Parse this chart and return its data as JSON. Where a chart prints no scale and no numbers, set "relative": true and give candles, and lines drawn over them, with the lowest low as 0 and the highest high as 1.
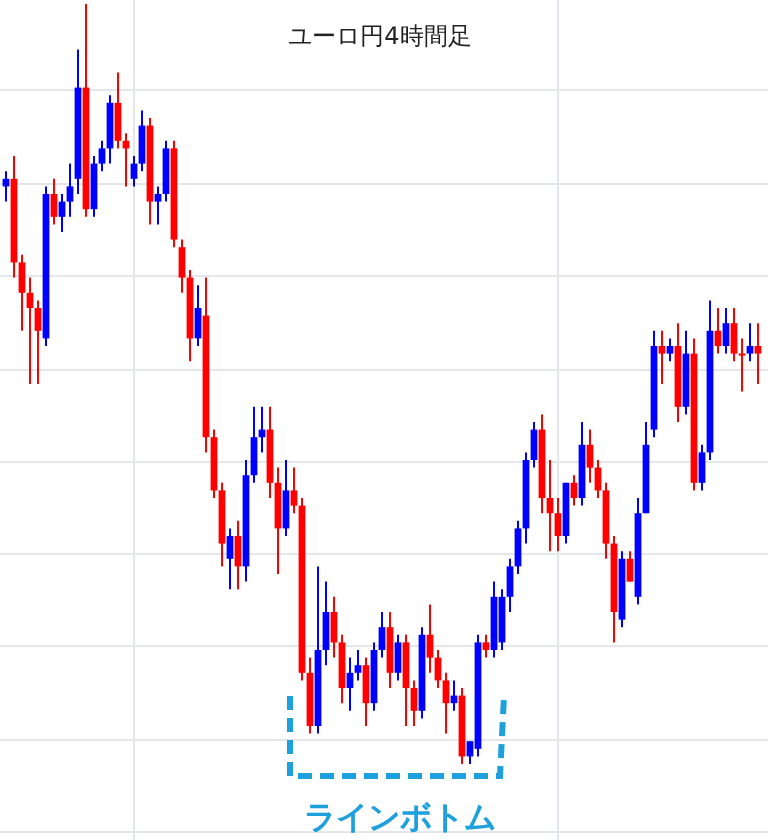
{
  "chart_data": {
    "type": "candlestick",
    "title": "ユーロ円4時間足",
    "relative": true,
    "grid": true,
    "annotations": [
      "ラインボトム"
    ],
    "categories": [
      null,
      null,
      null,
      null,
      null,
      null,
      null,
      null,
      null,
      null,
      null,
      null,
      null,
      null,
      null,
      null,
      null,
      null,
      null,
      null,
      null,
      null,
      null,
      null,
      null,
      null,
      null,
      null,
      null,
      null,
      null,
      null,
      null,
      null,
      null,
      null,
      null,
      null,
      null,
      null,
      null,
      null,
      null,
      null,
      null,
      null,
      null,
      null,
      null,
      null,
      null,
      null,
      null,
      null,
      null,
      null,
      null,
      null,
      null,
      null,
      null,
      null,
      null,
      null,
      null,
      null,
      null,
      null,
      null,
      null,
      null,
      null,
      null,
      null,
      null,
      null,
      null,
      null,
      null,
      null,
      null,
      null,
      null,
      null,
      null,
      null,
      null,
      null,
      null,
      null,
      null,
      null,
      null,
      null,
      null
    ],
    "ohlc": [
      [
        0.76,
        0.78,
        0.74,
        0.77
      ],
      [
        0.77,
        0.8,
        0.64,
        0.66
      ],
      [
        0.66,
        0.67,
        0.57,
        0.62
      ],
      [
        0.62,
        0.64,
        0.5,
        0.6
      ],
      [
        0.6,
        0.61,
        0.5,
        0.57
      ],
      [
        0.56,
        0.76,
        0.55,
        0.75
      ],
      [
        0.75,
        0.77,
        0.71,
        0.72
      ],
      [
        0.72,
        0.75,
        0.7,
        0.74
      ],
      [
        0.74,
        0.79,
        0.72,
        0.76
      ],
      [
        0.77,
        0.94,
        0.75,
        0.89
      ],
      [
        0.89,
        1.0,
        0.72,
        0.73
      ],
      [
        0.73,
        0.8,
        0.72,
        0.79
      ],
      [
        0.79,
        0.82,
        0.78,
        0.81
      ],
      [
        0.81,
        0.88,
        0.79,
        0.87
      ],
      [
        0.87,
        0.91,
        0.81,
        0.82
      ],
      [
        0.82,
        0.83,
        0.76,
        0.81
      ],
      [
        0.77,
        0.8,
        0.76,
        0.79
      ],
      [
        0.79,
        0.86,
        0.78,
        0.84
      ],
      [
        0.84,
        0.85,
        0.71,
        0.74
      ],
      [
        0.74,
        0.76,
        0.71,
        0.75
      ],
      [
        0.75,
        0.82,
        0.74,
        0.81
      ],
      [
        0.81,
        0.82,
        0.68,
        0.69
      ],
      [
        0.68,
        0.69,
        0.62,
        0.64
      ],
      [
        0.64,
        0.65,
        0.53,
        0.56
      ],
      [
        0.56,
        0.63,
        0.55,
        0.6
      ],
      [
        0.59,
        0.64,
        0.41,
        0.43
      ],
      [
        0.43,
        0.44,
        0.35,
        0.36
      ],
      [
        0.36,
        0.37,
        0.26,
        0.29
      ],
      [
        0.27,
        0.31,
        0.23,
        0.3
      ],
      [
        0.3,
        0.32,
        0.23,
        0.26
      ],
      [
        0.26,
        0.4,
        0.24,
        0.38
      ],
      [
        0.38,
        0.47,
        0.37,
        0.43
      ],
      [
        0.43,
        0.47,
        0.41,
        0.44
      ],
      [
        0.44,
        0.47,
        0.35,
        0.37
      ],
      [
        0.37,
        0.39,
        0.25,
        0.31
      ],
      [
        0.31,
        0.4,
        0.3,
        0.36
      ],
      [
        0.36,
        0.39,
        0.33,
        0.34
      ],
      [
        0.34,
        0.35,
        0.11,
        0.12
      ],
      [
        0.12,
        0.14,
        0.04,
        0.05
      ],
      [
        0.05,
        0.26,
        0.04,
        0.15
      ],
      [
        0.15,
        0.24,
        0.13,
        0.2
      ],
      [
        0.2,
        0.22,
        0.14,
        0.16
      ],
      [
        0.16,
        0.17,
        0.08,
        0.1
      ],
      [
        0.1,
        0.14,
        0.07,
        0.12
      ],
      [
        0.12,
        0.15,
        0.11,
        0.13
      ],
      [
        0.13,
        0.14,
        0.05,
        0.08
      ],
      [
        0.08,
        0.16,
        0.07,
        0.15
      ],
      [
        0.15,
        0.2,
        0.14,
        0.18
      ],
      [
        0.18,
        0.2,
        0.1,
        0.12
      ],
      [
        0.12,
        0.17,
        0.11,
        0.16
      ],
      [
        0.16,
        0.17,
        0.05,
        0.1
      ],
      [
        0.1,
        0.11,
        0.05,
        0.07
      ],
      [
        0.07,
        0.18,
        0.06,
        0.17
      ],
      [
        0.17,
        0.21,
        0.12,
        0.14
      ],
      [
        0.14,
        0.15,
        0.1,
        0.11
      ],
      [
        0.11,
        0.12,
        0.04,
        0.08
      ],
      [
        0.08,
        0.11,
        0.07,
        0.09
      ],
      [
        0.09,
        0.1,
        0.0,
        0.01
      ],
      [
        0.01,
        0.03,
        0.0,
        0.03
      ],
      [
        0.02,
        0.17,
        0.01,
        0.16
      ],
      [
        0.16,
        0.17,
        0.14,
        0.15
      ],
      [
        0.15,
        0.24,
        0.14,
        0.22
      ],
      [
        0.16,
        0.23,
        0.15,
        0.22
      ],
      [
        0.22,
        0.27,
        0.2,
        0.26
      ],
      [
        0.26,
        0.32,
        0.25,
        0.31
      ],
      [
        0.31,
        0.41,
        0.29,
        0.4
      ],
      [
        0.4,
        0.45,
        0.39,
        0.44
      ],
      [
        0.44,
        0.46,
        0.33,
        0.35
      ],
      [
        0.35,
        0.4,
        0.28,
        0.33
      ],
      [
        0.33,
        0.35,
        0.28,
        0.3
      ],
      [
        0.3,
        0.37,
        0.29,
        0.37
      ],
      [
        0.37,
        0.38,
        0.34,
        0.35
      ],
      [
        0.35,
        0.45,
        0.34,
        0.42
      ],
      [
        0.42,
        0.44,
        0.37,
        0.39
      ],
      [
        0.39,
        0.4,
        0.35,
        0.36
      ],
      [
        0.36,
        0.37,
        0.27,
        0.29
      ],
      [
        0.29,
        0.3,
        0.16,
        0.2
      ],
      [
        0.19,
        0.28,
        0.18,
        0.27
      ],
      [
        0.27,
        0.28,
        0.24,
        0.24
      ],
      [
        0.22,
        0.35,
        0.21,
        0.33
      ],
      [
        0.33,
        0.45,
        0.33,
        0.42
      ],
      [
        0.44,
        0.57,
        0.43,
        0.55
      ],
      [
        0.55,
        0.57,
        0.5,
        0.54
      ],
      [
        0.54,
        0.56,
        0.53,
        0.55
      ],
      [
        0.55,
        0.58,
        0.45,
        0.47
      ],
      [
        0.47,
        0.57,
        0.46,
        0.54
      ],
      [
        0.54,
        0.56,
        0.36,
        0.37
      ],
      [
        0.37,
        0.42,
        0.36,
        0.41
      ],
      [
        0.41,
        0.61,
        0.4,
        0.57
      ],
      [
        0.57,
        0.6,
        0.54,
        0.55
      ],
      [
        0.55,
        0.6,
        0.54,
        0.58
      ],
      [
        0.58,
        0.6,
        0.53,
        0.54
      ],
      [
        0.54,
        0.56,
        0.49,
        0.54
      ],
      [
        0.54,
        0.58,
        0.53,
        0.55
      ],
      [
        0.55,
        0.58,
        0.5,
        0.54
      ]
    ],
    "colors": [
      "#0000ff",
      "#ff0000",
      "#ff0000",
      "#ff0000",
      "#ff0000",
      "#0000ff",
      "#ff0000",
      "#0000ff",
      "#0000ff",
      "#0000ff",
      "#ff0000",
      "#0000ff",
      "#0000ff",
      "#0000ff",
      "#ff0000",
      "#ff0000",
      "#0000ff",
      "#0000ff",
      "#ff0000",
      "#0000ff",
      "#0000ff",
      "#ff0000",
      "#ff0000",
      "#ff0000",
      "#0000ff",
      "#ff0000",
      "#ff0000",
      "#ff0000",
      "#0000ff",
      "#ff0000",
      "#0000ff",
      "#0000ff",
      "#0000ff",
      "#ff0000",
      "#ff0000",
      "#0000ff",
      "#ff0000",
      "#ff0000",
      "#ff0000",
      "#0000ff",
      "#0000ff",
      "#ff0000",
      "#ff0000",
      "#0000ff",
      "#0000ff",
      "#ff0000",
      "#0000ff",
      "#0000ff",
      "#ff0000",
      "#0000ff",
      "#ff0000",
      "#ff0000",
      "#0000ff",
      "#ff0000",
      "#ff0000",
      "#ff0000",
      "#0000ff",
      "#ff0000",
      "#0000ff",
      "#0000ff",
      "#ff0000",
      "#0000ff",
      "#0000ff",
      "#0000ff",
      "#0000ff",
      "#0000ff",
      "#0000ff",
      "#ff0000",
      "#ff0000",
      "#ff0000",
      "#0000ff",
      "#ff0000",
      "#0000ff",
      "#ff0000",
      "#ff0000",
      "#ff0000",
      "#ff0000",
      "#0000ff",
      "#ff0000",
      "#0000ff",
      "#0000ff",
      "#0000ff",
      "#ff0000",
      "#0000ff",
      "#ff0000",
      "#0000ff",
      "#ff0000",
      "#0000ff",
      "#0000ff",
      "#ff0000",
      "#0000ff",
      "#ff0000",
      "#ff0000",
      "#0000ff",
      "#ff0000"
    ]
  }
}
